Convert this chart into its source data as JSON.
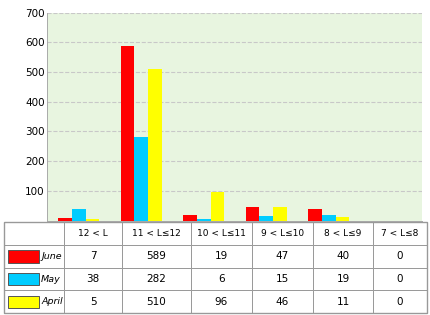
{
  "categories": [
    "12 < L",
    "11 < L≤12",
    "10 < L≤11",
    "9 < L≤10",
    "8 < L≤9",
    "7 < L≤8"
  ],
  "series": [
    {
      "name": "June",
      "color": "#ff0000",
      "values": [
        7,
        589,
        19,
        47,
        40,
        0
      ]
    },
    {
      "name": "May",
      "color": "#00ccff",
      "values": [
        38,
        282,
        6,
        15,
        19,
        0
      ]
    },
    {
      "name": "April",
      "color": "#ffff00",
      "values": [
        5,
        510,
        96,
        46,
        11,
        0
      ]
    }
  ],
  "ylim": [
    0,
    700
  ],
  "yticks": [
    100,
    200,
    300,
    400,
    500,
    600,
    700
  ],
  "plot_bg_color": "#e8f5e0",
  "outer_bg_color": "#ffffff",
  "grid_color": "#c8c8c8",
  "bar_width": 0.22
}
